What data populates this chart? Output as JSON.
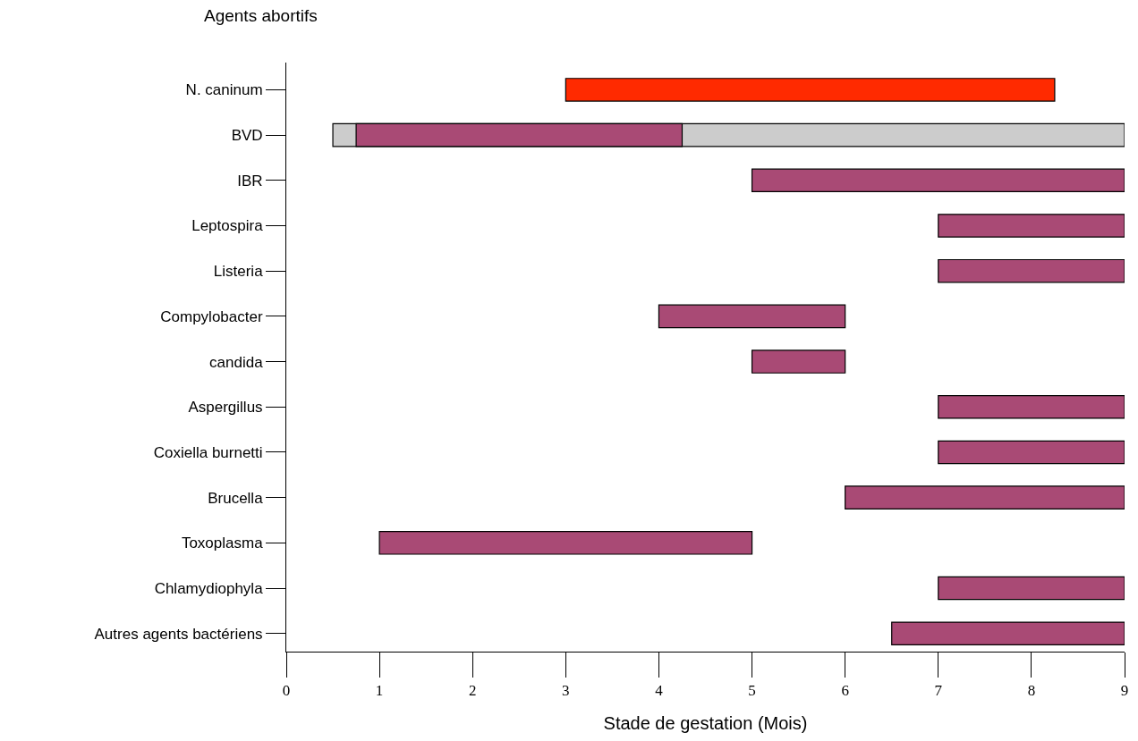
{
  "chart_data": {
    "type": "bar",
    "orientation": "horizontal",
    "ylabel": "Agents abortifs",
    "xlabel": "Stade de gestation (Mois)",
    "categories": [
      "N. caninum",
      "BVD",
      "IBR",
      "Leptospira",
      "Listeria",
      "Compylobacter",
      "candida",
      "Aspergillus",
      "Coxiella burnetti",
      "Brucella",
      "Toxoplasma",
      "Chlamydiophyla",
      "Autres agents bactériens"
    ],
    "series": [
      {
        "color": "#cccccc",
        "base": [
          null,
          0.5,
          null,
          null,
          null,
          null,
          null,
          null,
          null,
          null,
          null,
          null,
          null
        ],
        "values": [
          null,
          8.5,
          null,
          null,
          null,
          null,
          null,
          null,
          null,
          null,
          null,
          null,
          null
        ]
      },
      {
        "colors": [
          "#ff2a00",
          "#a94a75",
          "#a94a75",
          "#a94a75",
          "#a94a75",
          "#a94a75",
          "#a94a75",
          "#a94a75",
          "#a94a75",
          "#a94a75",
          "#a94a75",
          "#a94a75",
          "#a94a75"
        ],
        "base": [
          3,
          0.75,
          5,
          7,
          7,
          4,
          5,
          7,
          7,
          6,
          1,
          7,
          6.5
        ],
        "values": [
          5.25,
          3.5,
          4,
          2,
          2,
          2,
          1,
          2,
          2,
          3,
          4,
          2,
          2.5
        ]
      }
    ],
    "xlim": [
      0,
      9
    ],
    "xticks": [
      0,
      1,
      2,
      3,
      4,
      5,
      6,
      7,
      8,
      9
    ]
  }
}
